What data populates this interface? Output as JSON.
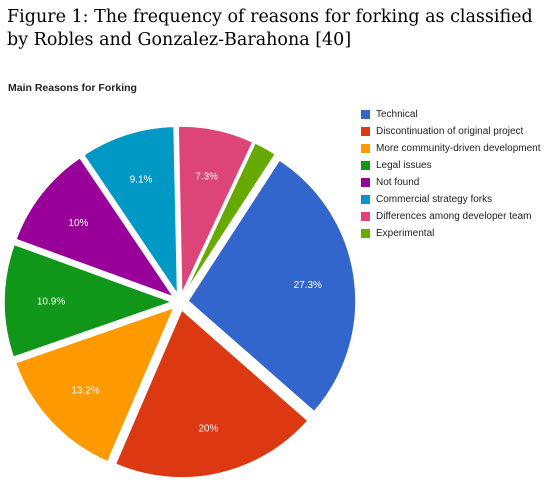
{
  "figure": {
    "caption": "Figure 1: The frequency of reasons for forking as classified by Robles and Gonzalez-Barahona [40]"
  },
  "chart_data": {
    "type": "pie",
    "title": "Main Reasons for Forking",
    "legend_position": "right",
    "slices": [
      {
        "name": "Technical",
        "value": 27.3,
        "label": "27.3%",
        "color": "#3366cc"
      },
      {
        "name": "Discontinuation of original project",
        "value": 20,
        "label": "20%",
        "color": "#dc3912"
      },
      {
        "name": "More community-driven development",
        "value": 13.2,
        "label": "13.2%",
        "color": "#ff9900"
      },
      {
        "name": "Legal issues",
        "value": 10.9,
        "label": "10.9%",
        "color": "#109618"
      },
      {
        "name": "Not found",
        "value": 10,
        "label": "10%",
        "color": "#990099"
      },
      {
        "name": "Commercial strategy forks",
        "value": 9.1,
        "label": "9.1%",
        "color": "#0099c6"
      },
      {
        "name": "Differences among developer team",
        "value": 7.3,
        "label": "7.3%",
        "color": "#dd4477"
      },
      {
        "name": "Experimental",
        "value": 2.2,
        "label": "",
        "color": "#66aa00"
      }
    ]
  }
}
